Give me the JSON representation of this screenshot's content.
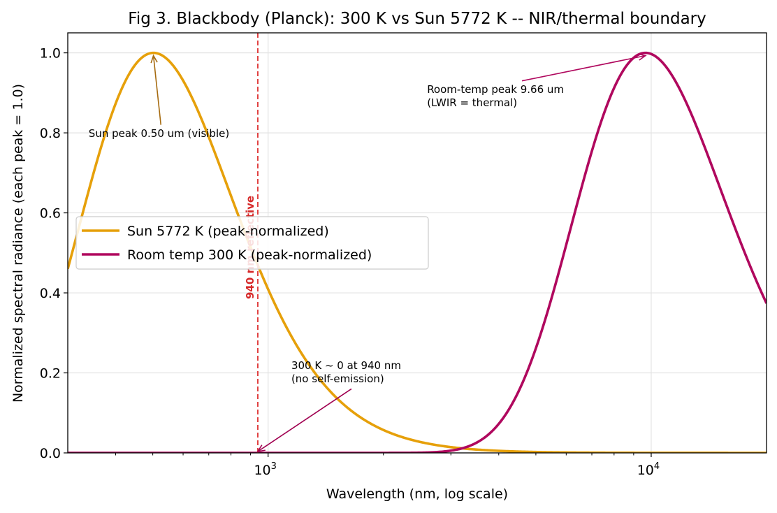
{
  "chart_data": {
    "type": "line",
    "title": "Fig 3. Blackbody (Planck): 300 K vs Sun 5772 K -- NIR/thermal boundary",
    "xlabel": "Wavelength (nm, log scale)",
    "ylabel": "Normalized spectral radiance (each peak = 1.0)",
    "xscale": "log",
    "xlim": [
      300,
      20000
    ],
    "ylim": [
      0,
      1.05
    ],
    "x_major_ticks": [
      1000,
      10000
    ],
    "x_tick_labels": [
      {
        "base": "10",
        "exp": "3"
      },
      {
        "base": "10",
        "exp": "4"
      }
    ],
    "y_ticks": [
      0.0,
      0.2,
      0.4,
      0.6,
      0.8,
      1.0
    ],
    "y_tick_labels": [
      "0.0",
      "0.2",
      "0.4",
      "0.6",
      "0.8",
      "1.0"
    ],
    "grid": true,
    "legend": {
      "placement": "center-left"
    },
    "series": [
      {
        "name": "Sun 5772 K (peak-normalized)",
        "temperature_K": 5772,
        "peak_nm": 502,
        "color": "#e6a00a"
      },
      {
        "name": "Room temp 300 K (peak-normalized)",
        "temperature_K": 300,
        "peak_nm": 9660,
        "color": "#b0085e"
      }
    ],
    "vline": {
      "x": 940,
      "label": "940 nm reflective",
      "color": "#e04040"
    },
    "annotations": [
      {
        "text_lines": [
          "Sun peak 0.50 um (visible)"
        ],
        "target": [
          502,
          1.0
        ],
        "text_pos": [
          340,
          0.79
        ],
        "color": "#a66b10"
      },
      {
        "text_lines": [
          "Room-temp peak 9.66 um",
          "(LWIR = thermal)"
        ],
        "target": [
          9660,
          1.0
        ],
        "text_pos": [
          2600,
          0.9
        ],
        "color": "#b0085e"
      },
      {
        "text_lines": [
          "300 K ~ 0 at 940 nm",
          "(no self-emission)"
        ],
        "target": [
          940,
          0.0
        ],
        "text_pos": [
          1150,
          0.21
        ],
        "color": "#a00050"
      }
    ]
  }
}
